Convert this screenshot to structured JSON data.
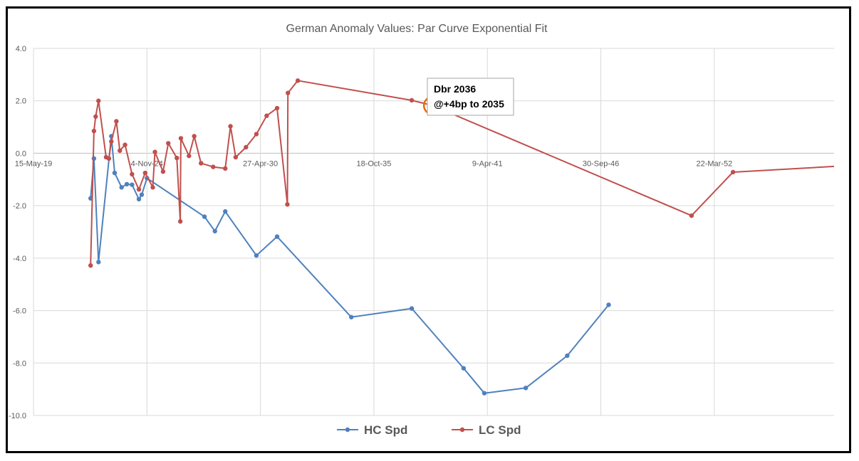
{
  "chart_data": {
    "type": "line",
    "title": "German Anomaly Values: Par Curve Exponential Fit",
    "xlabel": "",
    "ylabel": "",
    "x_axis": "date",
    "xlim": [
      "2019-05-15",
      "2058-01-01"
    ],
    "ylim": [
      -10,
      4
    ],
    "y_ticks": [
      4,
      2,
      0,
      -2,
      -4,
      -6,
      -8,
      -10
    ],
    "y_tick_labels": [
      "4.0",
      "2.0",
      "0.0",
      "-2.0",
      "-4.0",
      "-6.0",
      "-8.0",
      "-10.0"
    ],
    "x_ticks": [
      "2019-05-15",
      "2024-11-04",
      "2030-04-27",
      "2035-10-18",
      "2041-04-09",
      "2046-09-30",
      "2052-03-22"
    ],
    "x_tick_labels": [
      "15-May-19",
      "4-Nov-24",
      "27-Apr-30",
      "18-Oct-35",
      "9-Apr-41",
      "30-Sep-46",
      "22-Mar-52"
    ],
    "grid": true,
    "legend_position": "bottom",
    "series": [
      {
        "name": "HC Spd",
        "color": "#4f81bd",
        "points": [
          [
            "2022-02-15",
            -1.72
          ],
          [
            "2022-04-15",
            -0.2
          ],
          [
            "2022-07-04",
            -4.15
          ],
          [
            "2023-02-15",
            0.65
          ],
          [
            "2023-04-15",
            -0.75
          ],
          [
            "2023-08-15",
            -1.3
          ],
          [
            "2023-11-15",
            -1.18
          ],
          [
            "2024-02-15",
            -1.2
          ],
          [
            "2024-06-15",
            -1.75
          ],
          [
            "2024-08-04",
            -1.58
          ],
          [
            "2024-11-04",
            -0.95
          ],
          [
            "2027-08-15",
            -2.42
          ],
          [
            "2028-02-15",
            -2.97
          ],
          [
            "2028-08-15",
            -2.22
          ],
          [
            "2030-02-15",
            -3.9
          ],
          [
            "2031-02-15",
            -3.18
          ],
          [
            "2034-09-15",
            -6.25
          ],
          [
            "2037-08-15",
            -5.92
          ],
          [
            "2040-02-15",
            -8.2
          ],
          [
            "2041-02-15",
            -9.15
          ],
          [
            "2043-02-15",
            -8.95
          ],
          [
            "2045-02-15",
            -7.72
          ],
          [
            "2047-02-15",
            -5.78
          ]
        ]
      },
      {
        "name": "LC Spd",
        "color": "#c0504d",
        "points": [
          [
            "2022-02-15",
            -4.28
          ],
          [
            "2022-04-15",
            0.85
          ],
          [
            "2022-05-15",
            1.4
          ],
          [
            "2022-07-04",
            2.0
          ],
          [
            "2022-11-15",
            -0.15
          ],
          [
            "2023-01-04",
            -0.2
          ],
          [
            "2023-02-15",
            0.45
          ],
          [
            "2023-05-15",
            1.22
          ],
          [
            "2023-07-15",
            0.1
          ],
          [
            "2023-10-15",
            0.32
          ],
          [
            "2024-02-15",
            -0.8
          ],
          [
            "2024-06-15",
            -1.38
          ],
          [
            "2024-10-04",
            -0.75
          ],
          [
            "2025-02-15",
            -1.3
          ],
          [
            "2025-03-25",
            0.05
          ],
          [
            "2025-08-15",
            -0.7
          ],
          [
            "2025-11-15",
            0.38
          ],
          [
            "2026-04-15",
            -0.18
          ],
          [
            "2026-06-15",
            -2.6
          ],
          [
            "2026-06-25",
            0.57
          ],
          [
            "2026-11-15",
            -0.1
          ],
          [
            "2027-02-15",
            0.65
          ],
          [
            "2027-06-15",
            -0.38
          ],
          [
            "2028-01-15",
            -0.52
          ],
          [
            "2028-08-15",
            -0.58
          ],
          [
            "2028-11-15",
            1.03
          ],
          [
            "2029-02-15",
            -0.15
          ],
          [
            "2029-08-15",
            0.23
          ],
          [
            "2030-02-15",
            0.73
          ],
          [
            "2030-08-15",
            1.43
          ],
          [
            "2031-02-15",
            1.72
          ],
          [
            "2031-08-15",
            -1.95
          ],
          [
            "2031-08-25",
            2.3
          ],
          [
            "2032-02-15",
            2.77
          ],
          [
            "2037-08-15",
            2.02
          ],
          [
            "2038-08-15",
            1.82
          ],
          [
            "2051-02-15",
            -2.38
          ],
          [
            "2053-02-15",
            -0.72
          ],
          [
            "2058-01-01",
            -0.5
          ]
        ]
      }
    ],
    "annotations": [
      {
        "text_lines": [
          "Dbr 2036",
          "@+4bp to 2035"
        ],
        "target": [
          "2038-08-15",
          1.82
        ],
        "marker_color": "#e46c0a"
      }
    ]
  }
}
